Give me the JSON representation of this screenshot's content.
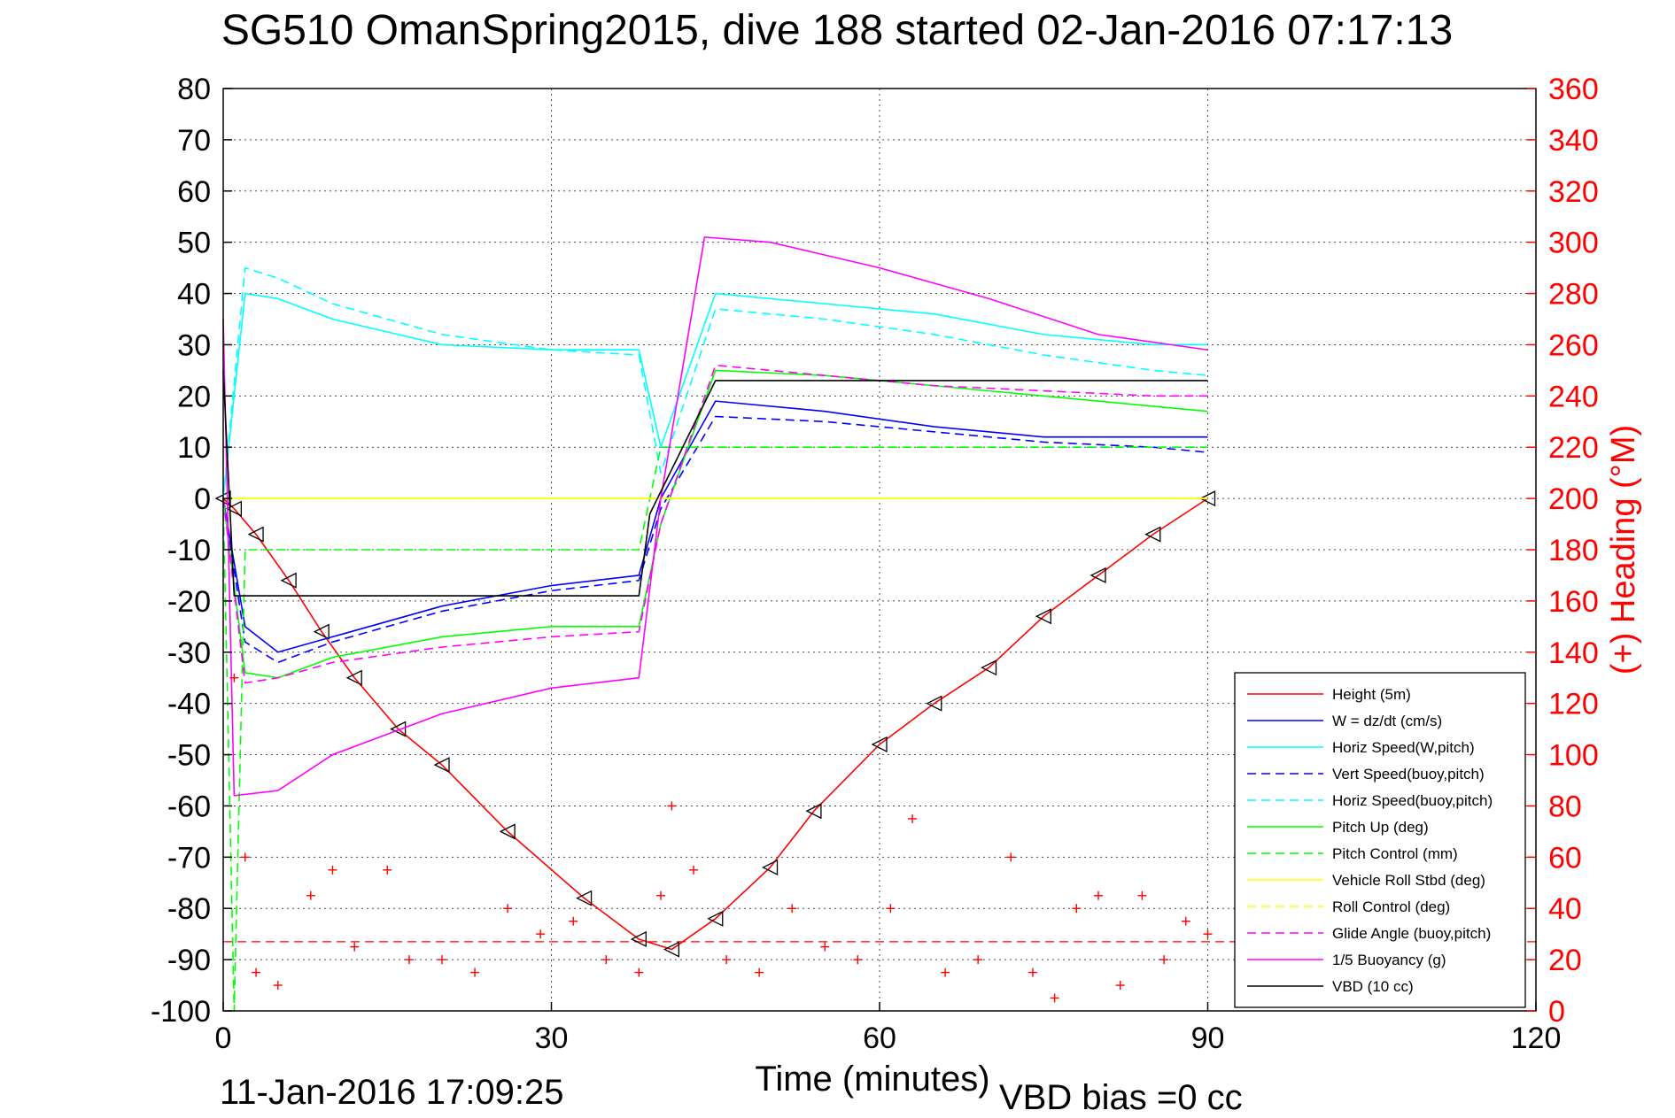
{
  "chart_data": {
    "type": "line",
    "title": "SG510 OmanSpring2015, dive 188 started 02-Jan-2016 07:17:13",
    "xlabel": "Time (minutes)",
    "ylabel": "",
    "y2label": "(+) Heading (°M)",
    "xlim": [
      0,
      120
    ],
    "ylim": [
      -100,
      80
    ],
    "y2lim": [
      0,
      360
    ],
    "xticks": [
      "0",
      "30",
      "60",
      "90",
      "120"
    ],
    "yticks": [
      "80",
      "70",
      "60",
      "50",
      "40",
      "30",
      "20",
      "10",
      "0",
      "-10",
      "-20",
      "-30",
      "-40",
      "-50",
      "-60",
      "-70",
      "-80",
      "-90",
      "-100"
    ],
    "y2ticks": [
      "360",
      "340",
      "320",
      "300",
      "280",
      "260",
      "240",
      "220",
      "200",
      "180",
      "160",
      "140",
      "120",
      "100",
      "80",
      "60",
      "40",
      "20",
      "0"
    ],
    "grid": true,
    "legend_position": "bottom-right",
    "colors": {
      "axis2": "#ff0000"
    },
    "series": [
      {
        "name": "Height (5m)",
        "color": "#ff0000",
        "dash": "solid",
        "marker": "triangle",
        "x": [
          0,
          1,
          3,
          6,
          9,
          12,
          16,
          20,
          26,
          33,
          38,
          41,
          45,
          50,
          54,
          60,
          65,
          70,
          75,
          80,
          85,
          90
        ],
        "y": [
          0,
          -2,
          -7,
          -16,
          -26,
          -35,
          -45,
          -52,
          -65,
          -78,
          -86,
          -88,
          -82,
          -72,
          -61,
          -48,
          -40,
          -33,
          -23,
          -15,
          -7,
          0
        ]
      },
      {
        "name": "W = dz/dt (cm/s)",
        "color": "#0000ff",
        "dash": "solid",
        "x": [
          0,
          2,
          5,
          10,
          20,
          30,
          38,
          40,
          45,
          55,
          65,
          75,
          85,
          90
        ],
        "y": [
          0,
          -25,
          -30,
          -27,
          -21,
          -17,
          -15,
          0,
          19,
          17,
          14,
          12,
          12,
          12
        ]
      },
      {
        "name": "Horiz Speed(W,pitch)",
        "color": "#00ffff",
        "dash": "solid",
        "x": [
          0,
          2,
          5,
          10,
          20,
          30,
          38,
          40,
          45,
          55,
          65,
          75,
          85,
          90
        ],
        "y": [
          0,
          40,
          39,
          35,
          30,
          29,
          29,
          10,
          40,
          38,
          36,
          32,
          30,
          30
        ]
      },
      {
        "name": "Vert Speed(buoy,pitch)",
        "color": "#0000ff",
        "dash": "dashed",
        "x": [
          0,
          2,
          5,
          10,
          20,
          30,
          38,
          40,
          45,
          55,
          65,
          75,
          85,
          90
        ],
        "y": [
          0,
          -28,
          -32,
          -28,
          -22,
          -18,
          -16,
          -2,
          16,
          15,
          13,
          11,
          10,
          9
        ]
      },
      {
        "name": "Horiz Speed(buoy,pitch)",
        "color": "#00ffff",
        "dash": "dashed",
        "x": [
          0,
          2,
          5,
          10,
          20,
          30,
          38,
          40,
          45,
          55,
          65,
          75,
          85,
          90
        ],
        "y": [
          0,
          45,
          43,
          38,
          32,
          29,
          28,
          5,
          37,
          35,
          32,
          28,
          25,
          24
        ]
      },
      {
        "name": "Pitch Up (deg)",
        "color": "#00ff00",
        "dash": "solid",
        "x": [
          0,
          2,
          5,
          10,
          20,
          30,
          38,
          40,
          45,
          55,
          65,
          75,
          85,
          90
        ],
        "y": [
          0,
          -34,
          -35,
          -31,
          -27,
          -25,
          -25,
          -5,
          25,
          24,
          22,
          20,
          18,
          17
        ]
      },
      {
        "name": "Pitch Control (mm)",
        "color": "#00ff00",
        "dash": "dashed",
        "x": [
          0,
          1,
          2,
          20,
          38,
          40,
          90
        ],
        "y": [
          0,
          -100,
          -10,
          -10,
          -10,
          10,
          10
        ]
      },
      {
        "name": "Vehicle Roll Stbd (deg)",
        "color": "#ffff00",
        "dash": "solid",
        "x": [
          0,
          10,
          30,
          38,
          40,
          45,
          60,
          90
        ],
        "y": [
          0,
          0,
          0,
          0,
          0,
          0,
          0,
          0
        ]
      },
      {
        "name": "Roll Control (deg)",
        "color": "#ffff00",
        "dash": "dashed",
        "x": [
          0,
          10,
          30,
          38,
          40,
          45,
          60,
          90
        ],
        "y": [
          0,
          0,
          0,
          0,
          0,
          0,
          0,
          0
        ]
      },
      {
        "name": "Glide Angle (buoy,pitch)",
        "color": "#ff00ff",
        "dash": "dashed",
        "x": [
          0,
          2,
          5,
          10,
          20,
          30,
          38,
          40,
          45,
          55,
          65,
          75,
          85,
          90
        ],
        "y": [
          0,
          -36,
          -35,
          -32,
          -29,
          -27,
          -26,
          -5,
          26,
          24,
          22,
          21,
          20,
          20
        ]
      },
      {
        "name": "1/5 Buoyancy (g)",
        "color": "#ff00ff",
        "dash": "solid",
        "x": [
          0,
          1,
          5,
          10,
          20,
          30,
          38,
          40,
          44,
          50,
          60,
          70,
          80,
          90
        ],
        "y": [
          35,
          -58,
          -57,
          -50,
          -42,
          -37,
          -35,
          0,
          51,
          50,
          45,
          39,
          32,
          29
        ]
      },
      {
        "name": "VBD (10 cc)",
        "color": "#000000",
        "dash": "solid",
        "x": [
          0,
          1,
          10,
          30,
          38,
          39,
          45,
          60,
          90
        ],
        "y": [
          25,
          -19,
          -19,
          -19,
          -19,
          -3,
          23,
          23,
          23
        ]
      }
    ],
    "heading_series": {
      "name": "(+) Heading",
      "color": "#ff0000",
      "marker": "plus",
      "x": [
        1,
        2,
        3,
        5,
        8,
        10,
        12,
        15,
        17,
        20,
        23,
        26,
        29,
        32,
        35,
        38,
        40,
        41,
        43,
        46,
        49,
        52,
        55,
        58,
        61,
        63,
        66,
        69,
        72,
        74,
        76,
        78,
        80,
        82,
        84,
        86,
        88,
        90
      ],
      "y": [
        130,
        60,
        15,
        10,
        45,
        55,
        25,
        55,
        20,
        20,
        15,
        40,
        30,
        35,
        20,
        15,
        45,
        80,
        55,
        20,
        15,
        40,
        25,
        20,
        40,
        75,
        15,
        20,
        60,
        15,
        5,
        40,
        45,
        10,
        45,
        20,
        35,
        30
      ]
    },
    "heading_reference": 27
  },
  "footer": {
    "timestamp": "11-Jan-2016 17:09:25",
    "vbd_bias": "VBD bias =0 cc"
  }
}
